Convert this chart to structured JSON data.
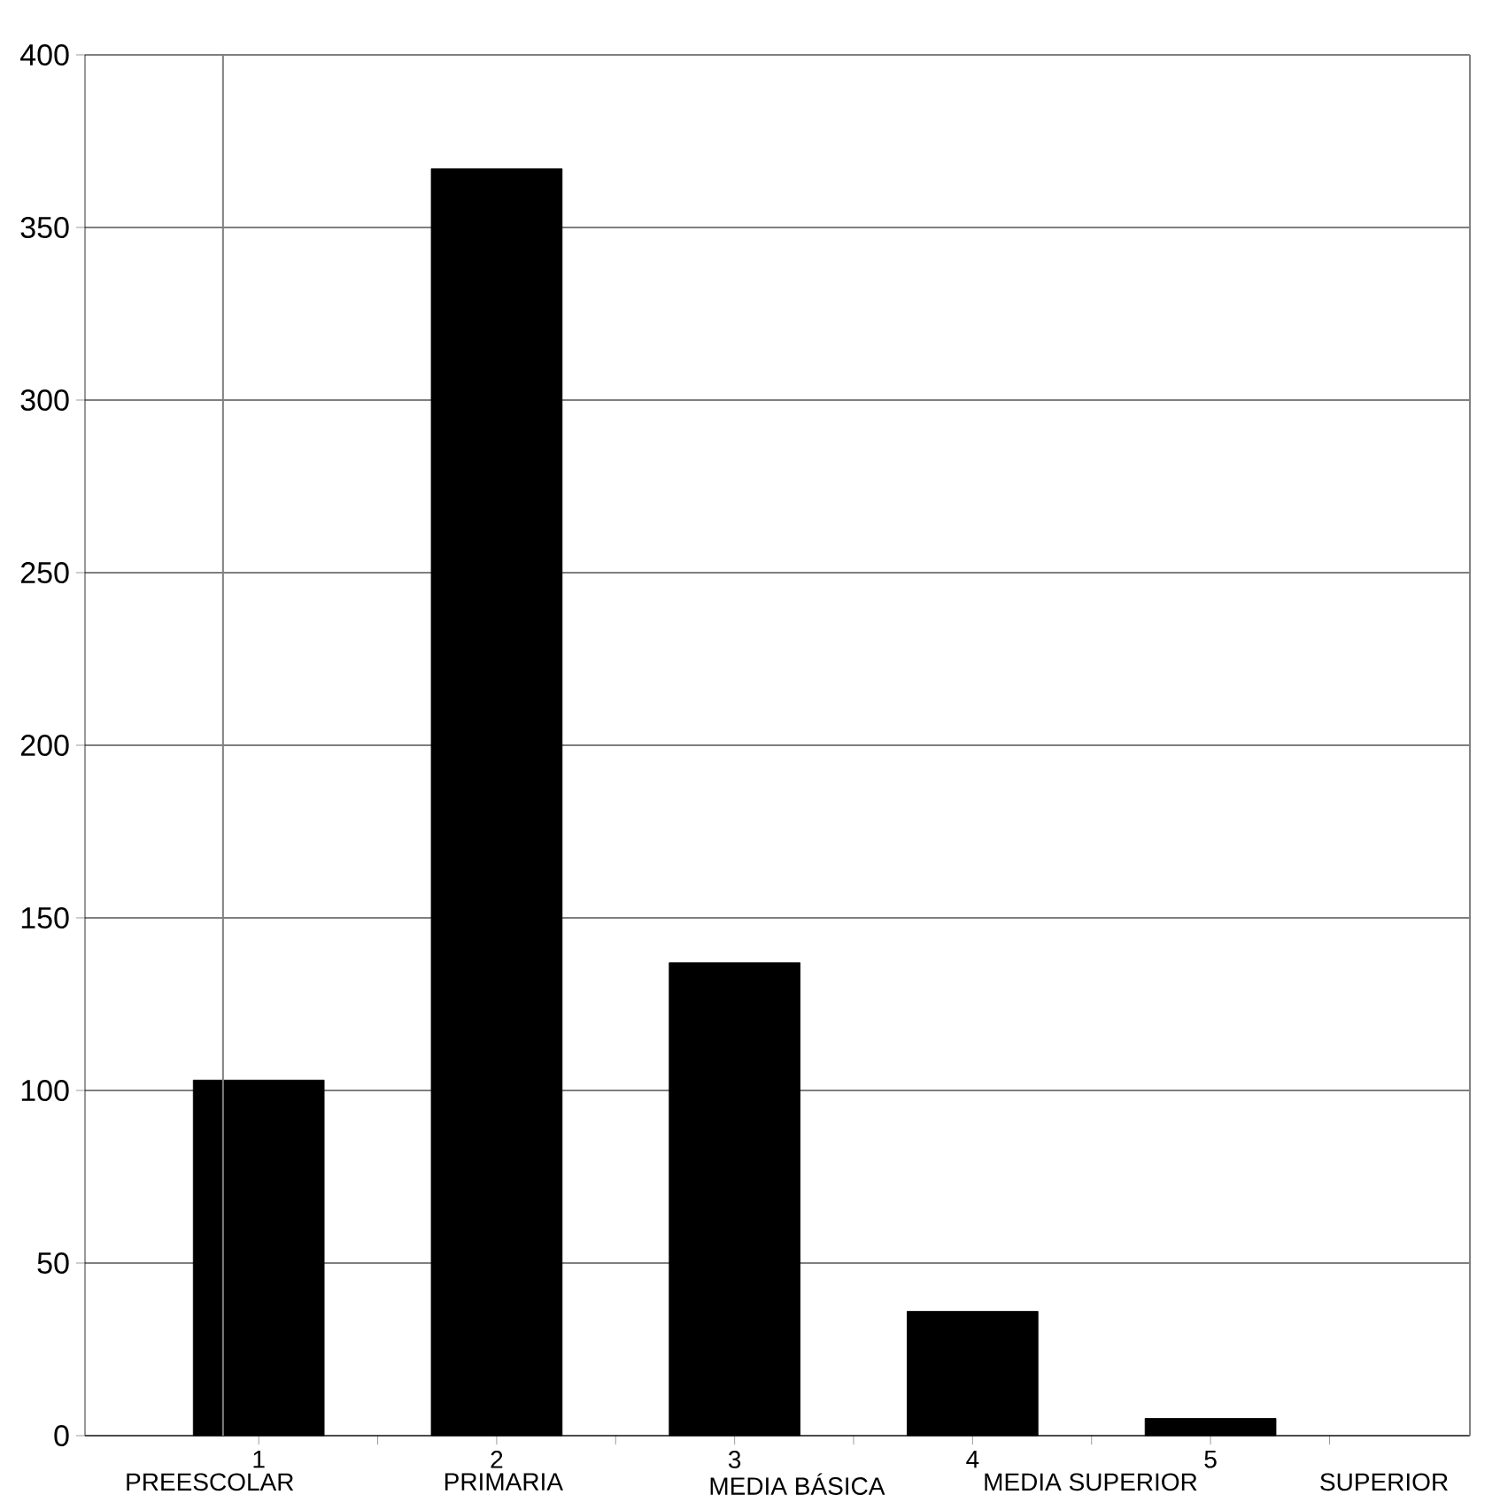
{
  "chart_data": {
    "type": "bar",
    "x": [
      1,
      2,
      3,
      4,
      5
    ],
    "values": [
      103,
      367,
      137,
      36,
      5
    ],
    "color": "#000000",
    "xlim": [
      0.27,
      6.09
    ],
    "xticks": [
      1,
      {
        "value": 1.5,
        "label": null
      },
      2,
      {
        "value": 2.5,
        "label": null
      },
      3,
      {
        "value": 3.5,
        "label": null
      },
      4,
      {
        "value": 4.5,
        "label": null
      },
      5,
      {
        "value": 5.5,
        "label": null
      }
    ],
    "ylim": [
      0,
      400
    ],
    "yticks": [
      0,
      50,
      100,
      150,
      200,
      250,
      300,
      350,
      400
    ],
    "grid": "y",
    "ref_lines": [
      {
        "axis": "x",
        "value": 0.85,
        "color": "#808080"
      }
    ],
    "annotations": [
      "PREESCOLAR",
      "PRIMARIA",
      "MEDIA BÁSICA",
      "MEDIA SUPERIOR",
      "SUPERIOR"
    ]
  }
}
